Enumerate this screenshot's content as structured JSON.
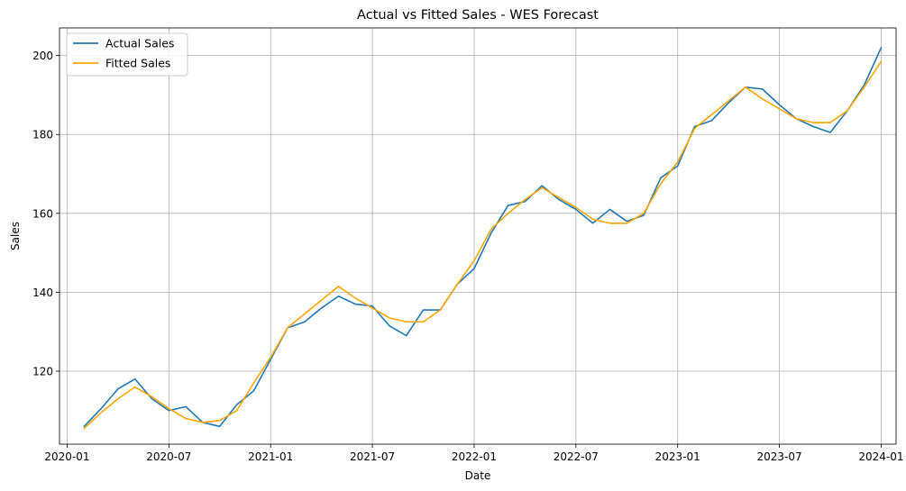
{
  "chart_data": {
    "type": "line",
    "title": "Actual vs Fitted Sales - WES Forecast",
    "xlabel": "Date",
    "ylabel": "Sales",
    "grid": true,
    "legend_position": "top-left",
    "xlim": [
      "2020-01",
      "2024-02"
    ],
    "ylim": [
      101.5,
      207
    ],
    "x_ticks": [
      "2020-01",
      "2020-07",
      "2021-01",
      "2021-07",
      "2022-01",
      "2022-07",
      "2023-01",
      "2023-07",
      "2024-01"
    ],
    "y_ticks": [
      120,
      140,
      160,
      180,
      200
    ],
    "x": [
      "2020-02",
      "2020-03",
      "2020-04",
      "2020-05",
      "2020-06",
      "2020-07",
      "2020-08",
      "2020-09",
      "2020-10",
      "2020-11",
      "2020-12",
      "2021-01",
      "2021-02",
      "2021-03",
      "2021-04",
      "2021-05",
      "2021-06",
      "2021-07",
      "2021-08",
      "2021-09",
      "2021-10",
      "2021-11",
      "2021-12",
      "2022-01",
      "2022-02",
      "2022-03",
      "2022-04",
      "2022-05",
      "2022-06",
      "2022-07",
      "2022-08",
      "2022-09",
      "2022-10",
      "2022-11",
      "2022-12",
      "2023-01",
      "2023-02",
      "2023-03",
      "2023-04",
      "2023-05",
      "2023-06",
      "2023-07",
      "2023-08",
      "2023-09",
      "2023-10",
      "2023-11",
      "2023-12",
      "2024-01"
    ],
    "series": [
      {
        "name": "Actual Sales",
        "color": "#1f77b4",
        "values": [
          106.0,
          110.5,
          115.5,
          118.0,
          113.0,
          110.0,
          111.0,
          107.0,
          106.0,
          111.5,
          115.0,
          123.0,
          131.0,
          132.5,
          136.0,
          139.0,
          137.0,
          136.5,
          131.5,
          129.0,
          135.5,
          135.5,
          142.0,
          146.0,
          155.0,
          162.0,
          163.0,
          167.0,
          163.5,
          161.0,
          157.5,
          161.0,
          158.0,
          159.5,
          169.0,
          172.0,
          182.0,
          183.5,
          188.0,
          192.0,
          191.5,
          187.5,
          184.0,
          182.0,
          180.5,
          186.0,
          192.5,
          202.0
        ]
      },
      {
        "name": "Fitted Sales",
        "color": "#ffa500",
        "values": [
          105.5,
          109.5,
          113.0,
          116.0,
          113.5,
          110.5,
          108.0,
          107.0,
          107.5,
          110.0,
          117.0,
          123.5,
          131.0,
          134.5,
          138.0,
          141.5,
          138.5,
          136.0,
          133.5,
          132.5,
          132.5,
          135.5,
          142.0,
          148.0,
          156.0,
          160.0,
          163.5,
          166.5,
          164.0,
          161.5,
          158.5,
          157.5,
          157.5,
          160.0,
          167.5,
          173.0,
          181.5,
          185.0,
          188.5,
          192.0,
          189.0,
          186.5,
          184.0,
          183.0,
          183.0,
          186.0,
          192.0,
          198.5
        ]
      }
    ]
  }
}
